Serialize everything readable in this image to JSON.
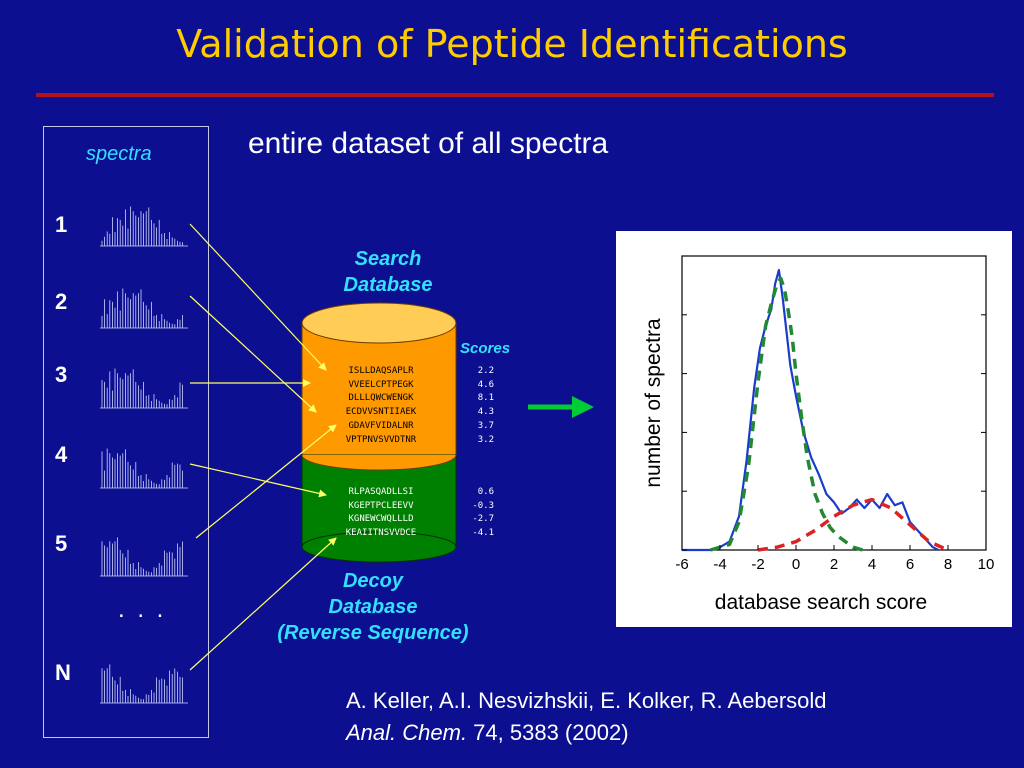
{
  "title": "Validation of Peptide Identifications",
  "subtitle": "entire dataset of all spectra",
  "spectra_panel": {
    "label": "spectra",
    "items": [
      "1",
      "2",
      "3",
      "4",
      "5",
      "N"
    ],
    "ellipsis": ". . ."
  },
  "search_database": {
    "label_line1": "Search",
    "label_line2": "Database",
    "sequences": [
      "ISLLDAQSAPLR",
      "VVEELCPTPEGK",
      "DLLLQWCWENGK",
      "ECDVVSNTIIAEK",
      "GDAVFVIDALNR",
      "VPTPNVSVVDTNR"
    ],
    "scores": [
      "2.2",
      "4.6",
      "8.1",
      "4.3",
      "3.7",
      "3.2"
    ],
    "color": "#ff9900"
  },
  "decoy_database": {
    "label_line1": "Decoy",
    "label_line2": "Database",
    "label_line3": "(Reverse Sequence)",
    "sequences": [
      "RLPASQADLLSI",
      "KGEPTPCLEEVV",
      "KGNEWCWQLLLD",
      "KEAIITNSVVDCE"
    ],
    "scores": [
      "0.6",
      "-0.3",
      "-2.7",
      "-4.1"
    ],
    "color": "#008000"
  },
  "scores_label": "Scores",
  "arrow_color": "#00cc33",
  "chart_data": {
    "type": "line",
    "title": "",
    "xlabel": "database search score",
    "ylabel": "number of spectra",
    "xlim": [
      -6,
      10
    ],
    "ylim": [
      0,
      1.05
    ],
    "xticks": [
      "-6",
      "-4",
      "-2",
      "0",
      "2",
      "4",
      "6",
      "8",
      "10"
    ],
    "series": [
      {
        "color": "#1a3ccc",
        "style": "solid",
        "x": [
          -6,
          -4.5,
          -4,
          -3.5,
          -3,
          -2.6,
          -2.2,
          -1.9,
          -1.6,
          -1.3,
          -1.1,
          -0.9,
          -0.7,
          -0.5,
          -0.3,
          0,
          0.4,
          0.8,
          1.2,
          1.6,
          2.0,
          2.4,
          2.8,
          3.2,
          3.6,
          4.0,
          4.4,
          4.8,
          5.2,
          5.6,
          6.0,
          6.4,
          6.8,
          7.2,
          7.5
        ],
        "y": [
          0,
          0,
          0.01,
          0.03,
          0.12,
          0.32,
          0.58,
          0.72,
          0.8,
          0.86,
          0.95,
          1.0,
          0.9,
          0.78,
          0.66,
          0.55,
          0.42,
          0.33,
          0.27,
          0.2,
          0.17,
          0.13,
          0.15,
          0.18,
          0.15,
          0.18,
          0.15,
          0.2,
          0.16,
          0.17,
          0.1,
          0.07,
          0.04,
          0.01,
          0
        ]
      },
      {
        "color": "#228833",
        "style": "dashed",
        "x": [
          -4.5,
          -3.5,
          -3,
          -2.5,
          -2.0,
          -1.6,
          -1.3,
          -1.0,
          -0.8,
          -0.6,
          -0.4,
          -0.2,
          0,
          0.3,
          0.6,
          1.0,
          1.4,
          1.8,
          2.2,
          2.6,
          3.0,
          3.5
        ],
        "y": [
          0,
          0.02,
          0.1,
          0.3,
          0.6,
          0.8,
          0.88,
          0.95,
          0.97,
          0.93,
          0.85,
          0.76,
          0.63,
          0.47,
          0.33,
          0.2,
          0.13,
          0.08,
          0.05,
          0.03,
          0.01,
          0
        ]
      },
      {
        "color": "#dd2222",
        "style": "dashed",
        "x": [
          -2,
          -1,
          0,
          1,
          2,
          3,
          4,
          5,
          6,
          7,
          8
        ],
        "y": [
          0,
          0.01,
          0.03,
          0.07,
          0.12,
          0.16,
          0.18,
          0.15,
          0.09,
          0.03,
          0.0
        ]
      }
    ]
  },
  "citation": {
    "line1": "A.  Keller, A.I. Nesvizhskii, E. Kolker, R. Aebersold",
    "journal": "Anal. Chem.",
    "rest": " 74, 5383 (2002)"
  }
}
